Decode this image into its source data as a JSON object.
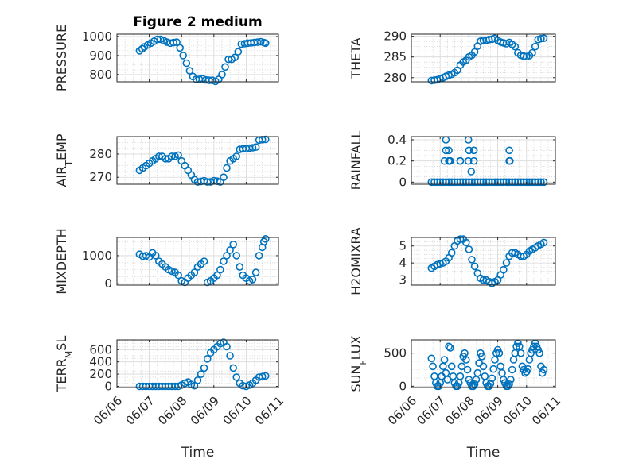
{
  "colors": {
    "marker": "#0072BD",
    "axis": "#262626"
  },
  "chart_data": [
    {
      "type": "scatter",
      "title": "Figure 2 medium",
      "ylabel": "PRESSURE",
      "yticks": [
        800,
        900,
        1000
      ],
      "ylim": [
        762,
        1012
      ],
      "xlim": [
        0,
        5
      ],
      "xticks": [
        0,
        1,
        2,
        3,
        4,
        5
      ],
      "xticklabels": [],
      "xlabel": "",
      "grid": true,
      "minor_grid": true,
      "x": [
        0.7,
        0.78,
        0.85,
        0.95,
        1.05,
        1.15,
        1.25,
        1.35,
        1.45,
        1.55,
        1.65,
        1.75,
        1.85,
        1.95,
        2.05,
        2.15,
        2.25,
        2.35,
        2.45,
        2.55,
        2.65,
        2.75,
        2.85,
        2.95,
        3.05,
        3.15,
        3.25,
        3.35,
        3.45,
        3.55,
        3.65,
        3.75,
        3.85,
        3.95,
        4.05,
        4.15,
        4.25,
        4.35,
        4.45,
        4.55,
        4.6
      ],
      "values": [
        925,
        935,
        945,
        955,
        965,
        975,
        985,
        985,
        978,
        970,
        965,
        968,
        970,
        940,
        900,
        860,
        820,
        790,
        775,
        775,
        778,
        772,
        770,
        770,
        765,
        775,
        800,
        840,
        880,
        880,
        890,
        920,
        960,
        962,
        965,
        966,
        968,
        970,
        972,
        968,
        965
      ]
    },
    {
      "type": "scatter",
      "title": "",
      "ylabel": "THETA",
      "yticks": [
        280,
        285,
        290
      ],
      "ylim": [
        279,
        290.5
      ],
      "xlim": [
        0,
        5
      ],
      "xticks": [
        0,
        1,
        2,
        3,
        4,
        5
      ],
      "xticklabels": [],
      "xlabel": "",
      "grid": true,
      "minor_grid": true,
      "x": [
        0.7,
        0.8,
        0.9,
        1.0,
        1.1,
        1.2,
        1.3,
        1.4,
        1.5,
        1.6,
        1.7,
        1.8,
        1.9,
        2.0,
        2.1,
        2.2,
        2.3,
        2.4,
        2.5,
        2.6,
        2.7,
        2.8,
        2.9,
        3.0,
        3.1,
        3.2,
        3.3,
        3.4,
        3.5,
        3.6,
        3.7,
        3.8,
        3.9,
        4.0,
        4.1,
        4.2,
        4.3,
        4.4,
        4.5,
        4.6
      ],
      "values": [
        279.3,
        279.4,
        279.5,
        279.8,
        280,
        280.3,
        280.6,
        280.8,
        281.2,
        281.8,
        283,
        283.8,
        284.2,
        285,
        285.4,
        286.2,
        287.6,
        288.8,
        289,
        289,
        289.2,
        289.3,
        289.5,
        289,
        288.6,
        288.4,
        288.2,
        288.5,
        288,
        287.5,
        286,
        285.4,
        285.2,
        285.1,
        285.3,
        286,
        287.5,
        289.2,
        289.4,
        289.5
      ]
    },
    {
      "type": "scatter",
      "title": "",
      "ylabel": "AIR_TEMP",
      "yticks": [
        270,
        280
      ],
      "ylim": [
        267,
        287.5
      ],
      "xlim": [
        0,
        5
      ],
      "xticks": [
        0,
        1,
        2,
        3,
        4,
        5
      ],
      "xticklabels": [],
      "xlabel": "",
      "grid": true,
      "minor_grid": true,
      "x": [
        0.7,
        0.8,
        0.9,
        1.0,
        1.1,
        1.2,
        1.3,
        1.4,
        1.5,
        1.6,
        1.7,
        1.8,
        1.9,
        2.0,
        2.1,
        2.2,
        2.3,
        2.4,
        2.5,
        2.6,
        2.7,
        2.8,
        2.9,
        3.0,
        3.1,
        3.2,
        3.3,
        3.4,
        3.5,
        3.6,
        3.7,
        3.8,
        3.9,
        4.0,
        4.1,
        4.2,
        4.3,
        4.4,
        4.5,
        4.6
      ],
      "values": [
        273,
        274,
        275,
        276,
        277,
        278,
        279,
        279,
        278,
        278,
        279,
        279,
        279.5,
        277,
        275,
        273,
        271,
        269,
        268,
        268.2,
        268.5,
        268,
        268,
        268.5,
        268.3,
        268,
        270,
        274,
        277,
        278,
        279,
        282,
        282.2,
        282.3,
        282.5,
        282.7,
        283,
        286,
        286.2,
        286.3
      ]
    },
    {
      "type": "scatter",
      "title": "",
      "ylabel": "RAINFALL",
      "yticks": [
        0,
        0.2,
        0.4
      ],
      "ylim": [
        -0.02,
        0.43
      ],
      "xlim": [
        0,
        5
      ],
      "xticks": [
        0,
        1,
        2,
        3,
        4,
        5
      ],
      "xticklabels": [],
      "xlabel": "",
      "grid": true,
      "minor_grid": true,
      "x": [
        0.7,
        0.8,
        0.9,
        1.0,
        1.1,
        1.2,
        1.3,
        1.4,
        1.5,
        1.6,
        1.7,
        1.8,
        1.9,
        2.0,
        2.1,
        2.2,
        2.3,
        2.4,
        2.5,
        2.6,
        2.7,
        2.8,
        2.9,
        3.0,
        3.1,
        3.2,
        3.3,
        3.4,
        3.5,
        3.6,
        3.7,
        3.8,
        3.9,
        4.0,
        4.1,
        4.2,
        4.3,
        4.4,
        4.5,
        4.6,
        1.15,
        1.2,
        1.2,
        1.3,
        1.3,
        1.33,
        1.35,
        1.7,
        1.7,
        1.98,
        1.98,
        2.0,
        2.08,
        2.17,
        2.17,
        3.4,
        3.4,
        3.41,
        3.42
      ],
      "values": [
        0,
        0,
        0,
        0,
        0,
        0,
        0,
        0,
        0,
        0,
        0,
        0,
        0,
        0,
        0,
        0,
        0,
        0,
        0,
        0,
        0,
        0,
        0,
        0,
        0,
        0,
        0,
        0,
        0,
        0,
        0,
        0,
        0,
        0,
        0,
        0,
        0,
        0,
        0,
        0,
        0.2,
        0.3,
        0.4,
        0.2,
        0.3,
        0.2,
        0.2,
        0.2,
        0.2,
        0.2,
        0.4,
        0.3,
        0.1,
        0.2,
        0.3,
        0.2,
        0.3,
        0.2,
        0.2
      ]
    },
    {
      "type": "scatter",
      "title": "",
      "ylabel": "MIXDEPTH",
      "yticks": [
        0,
        1000
      ],
      "ylim": [
        -50,
        1650
      ],
      "xlim": [
        0,
        5
      ],
      "xticks": [
        0,
        1,
        2,
        3,
        4,
        5
      ],
      "xticklabels": [],
      "xlabel": "",
      "grid": true,
      "minor_grid": true,
      "x": [
        0.7,
        0.8,
        0.9,
        1.0,
        1.1,
        1.2,
        1.3,
        1.4,
        1.5,
        1.6,
        1.7,
        1.8,
        1.9,
        2.0,
        2.1,
        2.2,
        2.3,
        2.4,
        2.5,
        2.6,
        2.7,
        2.8,
        2.9,
        3.0,
        3.1,
        3.2,
        3.3,
        3.4,
        3.5,
        3.6,
        3.7,
        3.8,
        3.9,
        4.0,
        4.1,
        4.2,
        4.3,
        4.4,
        4.5,
        4.55,
        4.6
      ],
      "values": [
        1050,
        980,
        1000,
        950,
        1100,
        1000,
        800,
        700,
        600,
        500,
        450,
        400,
        300,
        100,
        50,
        200,
        300,
        400,
        600,
        700,
        800,
        50,
        100,
        200,
        300,
        500,
        800,
        1000,
        1200,
        1400,
        1000,
        600,
        300,
        200,
        100,
        150,
        400,
        1000,
        1300,
        1500,
        1600
      ]
    },
    {
      "type": "scatter",
      "title": "",
      "ylabel": "H2OMIXRA",
      "yticks": [
        3,
        4,
        5
      ],
      "ylim": [
        2.7,
        5.5
      ],
      "xlim": [
        0,
        5
      ],
      "xticks": [
        0,
        1,
        2,
        3,
        4,
        5
      ],
      "xticklabels": [],
      "xlabel": "",
      "grid": true,
      "minor_grid": true,
      "x": [
        0.7,
        0.8,
        0.9,
        1.0,
        1.1,
        1.2,
        1.3,
        1.4,
        1.5,
        1.6,
        1.7,
        1.8,
        1.9,
        2.0,
        2.1,
        2.2,
        2.3,
        2.4,
        2.5,
        2.6,
        2.7,
        2.8,
        2.9,
        3.0,
        3.1,
        3.2,
        3.3,
        3.4,
        3.5,
        3.6,
        3.7,
        3.8,
        3.9,
        4.0,
        4.1,
        4.2,
        4.3,
        4.4,
        4.5,
        4.6
      ],
      "values": [
        3.7,
        3.8,
        3.9,
        3.95,
        4,
        4.1,
        4.3,
        4.6,
        5,
        5.3,
        5.4,
        5.4,
        5.2,
        4.8,
        4.2,
        3.8,
        3.4,
        3.1,
        3,
        3,
        2.9,
        2.8,
        2.9,
        3,
        3.3,
        3.6,
        4,
        4.4,
        4.6,
        4.6,
        4.5,
        4.4,
        4.4,
        4.5,
        4.7,
        4.8,
        4.9,
        5,
        5.1,
        5.2
      ]
    },
    {
      "type": "scatter",
      "title": "",
      "ylabel": "TERR_MSL",
      "yticks": [
        0,
        200,
        400,
        600
      ],
      "ylim": [
        -20,
        760
      ],
      "xlim": [
        0,
        5
      ],
      "xticks": [
        0,
        1,
        2,
        3,
        4,
        5
      ],
      "xticklabels": [
        "06/06",
        "06/07",
        "06/08",
        "06/09",
        "06/10",
        "06/11"
      ],
      "xlabel": "Time",
      "grid": true,
      "minor_grid": true,
      "x": [
        0.7,
        0.8,
        0.9,
        1.0,
        1.1,
        1.2,
        1.3,
        1.4,
        1.5,
        1.6,
        1.7,
        1.8,
        1.9,
        2.0,
        2.1,
        2.2,
        2.3,
        2.4,
        2.5,
        2.6,
        2.7,
        2.8,
        2.9,
        3.0,
        3.1,
        3.2,
        3.3,
        3.4,
        3.5,
        3.6,
        3.7,
        3.8,
        3.9,
        4.0,
        4.1,
        4.2,
        4.3,
        4.4,
        4.5,
        4.6
      ],
      "values": [
        0,
        0,
        0,
        0,
        0,
        0,
        0,
        0,
        0,
        0,
        0,
        0,
        0,
        20,
        50,
        70,
        30,
        10,
        100,
        200,
        300,
        450,
        550,
        600,
        650,
        700,
        720,
        650,
        500,
        300,
        150,
        50,
        10,
        0,
        20,
        50,
        100,
        150,
        160,
        170
      ]
    },
    {
      "type": "scatter",
      "title": "",
      "ylabel": "SUN_FLUX",
      "yticks": [
        0,
        500
      ],
      "ylim": [
        -20,
        700
      ],
      "xlim": [
        0,
        5
      ],
      "xticks": [
        0,
        1,
        2,
        3,
        4,
        5
      ],
      "xticklabels": [
        "06/06",
        "06/07",
        "06/08",
        "06/09",
        "06/10",
        "06/11"
      ],
      "xlabel": "Time",
      "grid": true,
      "minor_grid": true,
      "x": [
        0.7,
        0.75,
        0.8,
        0.85,
        0.9,
        0.95,
        1.0,
        1.05,
        1.1,
        1.15,
        1.2,
        1.25,
        1.3,
        1.35,
        1.4,
        1.45,
        1.5,
        1.55,
        1.6,
        1.65,
        1.7,
        1.75,
        1.8,
        1.85,
        1.9,
        1.95,
        2.0,
        2.05,
        2.1,
        2.15,
        2.2,
        2.25,
        2.3,
        2.35,
        2.4,
        2.45,
        2.5,
        2.55,
        2.6,
        2.65,
        2.7,
        2.75,
        2.8,
        2.85,
        2.9,
        2.95,
        3.0,
        3.05,
        3.1,
        3.15,
        3.2,
        3.25,
        3.3,
        3.35,
        3.4,
        3.45,
        3.5,
        3.55,
        3.6,
        3.65,
        3.7,
        3.75,
        3.8,
        3.85,
        3.9,
        3.95,
        4.0,
        4.05,
        4.1,
        4.15,
        4.2,
        4.25,
        4.3,
        4.35,
        4.4,
        4.45,
        4.5,
        4.55,
        4.6
      ],
      "values": [
        420,
        300,
        150,
        50,
        0,
        0,
        50,
        150,
        300,
        400,
        200,
        100,
        600,
        580,
        300,
        150,
        50,
        0,
        0,
        50,
        150,
        300,
        450,
        500,
        400,
        250,
        100,
        50,
        0,
        0,
        30,
        100,
        200,
        350,
        500,
        450,
        300,
        150,
        50,
        0,
        0,
        40,
        120,
        260,
        400,
        500,
        550,
        500,
        300,
        200,
        100,
        50,
        0,
        0,
        30,
        100,
        250,
        400,
        500,
        600,
        650,
        600,
        500,
        300,
        250,
        200,
        220,
        260,
        400,
        500,
        550,
        600,
        650,
        600,
        550,
        500,
        300,
        200,
        250
      ]
    }
  ]
}
